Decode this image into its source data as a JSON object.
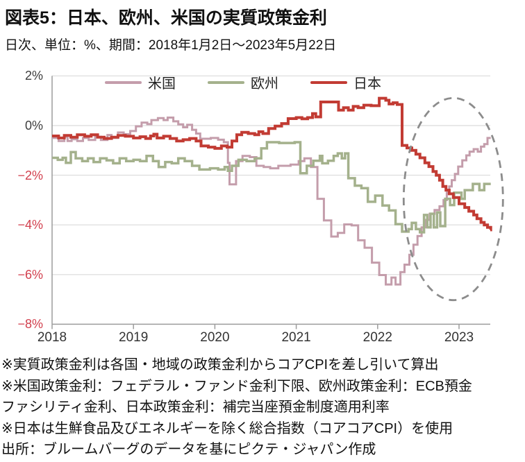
{
  "header": {
    "title": "図表5：日本、欧州、米国の実質政策金利",
    "subtitle": "日次、単位：%、期間：2018年1月2日～2023年5月22日"
  },
  "notes": [
    "※実質政策金利は各国・地域の政策金利からコアCPIを差し引いて算出",
    "※米国政策金利：フェデラル・ファンド金利下限、欧州政策金利：ECB預金ファシリティ金利、日本政策金利：補完当座預金制度適用利率",
    "※日本は生鮮食品及びエネルギーを除く総合指数（コアコアCPI）を使用",
    "出所：ブルームバーグのデータを基にピクテ・ジャパン作成"
  ],
  "colors": {
    "us": "#c49dab",
    "eu": "#a4b18c",
    "jp": "#c23b33",
    "grid": "#e0e0e0",
    "axis": "#9c9c9c",
    "negative_tick": "#d2404e",
    "positive_tick": "#3d3d3d",
    "ellipse": "#8c8c8c"
  },
  "chart_data": {
    "type": "line",
    "step": true,
    "title": "日本、欧州、米国の実質政策金利（%）",
    "x_range": [
      2018.0,
      2023.39
    ],
    "ylim": [
      -8,
      2
    ],
    "grid": "horizontal",
    "legend_position": "top-center",
    "x_ticks": [
      {
        "label": "2018",
        "year": 2018
      },
      {
        "label": "2019",
        "year": 2019
      },
      {
        "label": "2020",
        "year": 2020
      },
      {
        "label": "2021",
        "year": 2021
      },
      {
        "label": "2022",
        "year": 2022
      },
      {
        "label": "2023",
        "year": 2023
      }
    ],
    "y_ticks": [
      {
        "label": "2%",
        "value": 2,
        "tone": "positive"
      },
      {
        "label": "0%",
        "value": 0,
        "tone": "positive"
      },
      {
        "label": "−2%",
        "value": -2,
        "tone": "negative"
      },
      {
        "label": "−4%",
        "value": -4,
        "tone": "negative"
      },
      {
        "label": "−6%",
        "value": -6,
        "tone": "negative"
      },
      {
        "label": "−8%",
        "value": -8,
        "tone": "negative"
      }
    ],
    "annotation_ellipse": {
      "center_year": 2022.93,
      "center_value": -2.96,
      "rx_years": 0.61,
      "ry_values": 4.07,
      "style": "dashed-gray"
    },
    "series": [
      {
        "name": "米国",
        "color_key": "us",
        "width": 3,
        "points": [
          [
            2018.0,
            -0.5
          ],
          [
            2018.08,
            -0.62
          ],
          [
            2018.15,
            -0.45
          ],
          [
            2018.19,
            -0.62
          ],
          [
            2018.24,
            -0.55
          ],
          [
            2018.31,
            -0.62
          ],
          [
            2018.38,
            -0.5
          ],
          [
            2018.45,
            -0.58
          ],
          [
            2018.53,
            -0.45
          ],
          [
            2018.6,
            -0.58
          ],
          [
            2018.68,
            -0.38
          ],
          [
            2018.73,
            -0.5
          ],
          [
            2018.81,
            -0.28
          ],
          [
            2018.88,
            -0.35
          ],
          [
            2018.96,
            -0.22
          ],
          [
            2019.03,
            -0.03
          ],
          [
            2019.1,
            0.12
          ],
          [
            2019.17,
            0.06
          ],
          [
            2019.22,
            0.22
          ],
          [
            2019.3,
            0.3
          ],
          [
            2019.37,
            0.22
          ],
          [
            2019.42,
            0.32
          ],
          [
            2019.49,
            0.17
          ],
          [
            2019.55,
            0.05
          ],
          [
            2019.61,
            -0.07
          ],
          [
            2019.66,
            0.03
          ],
          [
            2019.72,
            -0.17
          ],
          [
            2019.77,
            -0.32
          ],
          [
            2019.82,
            -0.53
          ],
          [
            2019.95,
            -0.5
          ],
          [
            2020.04,
            -0.57
          ],
          [
            2020.11,
            -0.67
          ],
          [
            2020.16,
            -1.5
          ],
          [
            2020.18,
            -2.37
          ],
          [
            2020.26,
            -1.43
          ],
          [
            2020.34,
            -1.22
          ],
          [
            2020.43,
            -1.27
          ],
          [
            2020.51,
            -1.62
          ],
          [
            2020.6,
            -1.67
          ],
          [
            2020.68,
            -1.72
          ],
          [
            2020.78,
            -1.62
          ],
          [
            2020.93,
            -1.57
          ],
          [
            2021.03,
            -1.43
          ],
          [
            2021.1,
            -1.32
          ],
          [
            2021.18,
            -1.67
          ],
          [
            2021.26,
            -2.95
          ],
          [
            2021.34,
            -3.82
          ],
          [
            2021.43,
            -4.47
          ],
          [
            2021.51,
            -4.32
          ],
          [
            2021.59,
            -3.98
          ],
          [
            2021.68,
            -4.02
          ],
          [
            2021.76,
            -4.62
          ],
          [
            2021.84,
            -4.92
          ],
          [
            2021.93,
            -5.52
          ],
          [
            2022.02,
            -6.02
          ],
          [
            2022.1,
            -6.4
          ],
          [
            2022.17,
            -6.12
          ],
          [
            2022.22,
            -6.4
          ],
          [
            2022.28,
            -5.9
          ],
          [
            2022.33,
            -5.6
          ],
          [
            2022.39,
            -5.2
          ],
          [
            2022.44,
            -4.8
          ],
          [
            2022.49,
            -4.45
          ],
          [
            2022.54,
            -4.1
          ],
          [
            2022.59,
            -3.8
          ],
          [
            2022.64,
            -3.55
          ],
          [
            2022.7,
            -3.4
          ],
          [
            2022.76,
            -3.25
          ],
          [
            2022.81,
            -3.0
          ],
          [
            2022.85,
            -2.7
          ],
          [
            2022.88,
            -2.45
          ],
          [
            2022.91,
            -2.2
          ],
          [
            2022.95,
            -1.95
          ],
          [
            2022.99,
            -1.65
          ],
          [
            2023.04,
            -1.4
          ],
          [
            2023.09,
            -1.2
          ],
          [
            2023.13,
            -1.05
          ],
          [
            2023.18,
            -0.95
          ],
          [
            2023.23,
            -1.05
          ],
          [
            2023.27,
            -0.85
          ],
          [
            2023.31,
            -0.75
          ],
          [
            2023.35,
            -0.5
          ],
          [
            2023.39,
            -0.5
          ]
        ]
      },
      {
        "name": "欧州",
        "color_key": "eu",
        "width": 3.5,
        "points": [
          [
            2018.0,
            -1.3
          ],
          [
            2018.07,
            -1.38
          ],
          [
            2018.13,
            -1.3
          ],
          [
            2018.17,
            -1.5
          ],
          [
            2018.23,
            -1.07
          ],
          [
            2018.29,
            -1.32
          ],
          [
            2018.37,
            -1.43
          ],
          [
            2018.44,
            -1.32
          ],
          [
            2018.51,
            -1.47
          ],
          [
            2018.59,
            -1.32
          ],
          [
            2018.67,
            -1.4
          ],
          [
            2018.75,
            -1.52
          ],
          [
            2018.83,
            -1.32
          ],
          [
            2018.91,
            -1.43
          ],
          [
            2019.0,
            -1.38
          ],
          [
            2019.08,
            -1.43
          ],
          [
            2019.16,
            -1.22
          ],
          [
            2019.24,
            -1.43
          ],
          [
            2019.31,
            -1.67
          ],
          [
            2019.39,
            -1.47
          ],
          [
            2019.47,
            -1.52
          ],
          [
            2019.55,
            -1.32
          ],
          [
            2019.63,
            -1.43
          ],
          [
            2019.72,
            -1.62
          ],
          [
            2019.81,
            -1.77
          ],
          [
            2019.94,
            -1.72
          ],
          [
            2020.04,
            -1.77
          ],
          [
            2020.12,
            -1.67
          ],
          [
            2020.16,
            -1.82
          ],
          [
            2020.21,
            -1.62
          ],
          [
            2020.29,
            -1.38
          ],
          [
            2020.39,
            -1.43
          ],
          [
            2020.49,
            -1.32
          ],
          [
            2020.57,
            -0.92
          ],
          [
            2020.64,
            -0.67
          ],
          [
            2020.79,
            -0.7
          ],
          [
            2020.98,
            -0.67
          ],
          [
            2021.05,
            -1.92
          ],
          [
            2021.13,
            -1.62
          ],
          [
            2021.21,
            -1.42
          ],
          [
            2021.29,
            -1.22
          ],
          [
            2021.32,
            -1.52
          ],
          [
            2021.39,
            -1.42
          ],
          [
            2021.46,
            -1.22
          ],
          [
            2021.51,
            -1.12
          ],
          [
            2021.56,
            -1.32
          ],
          [
            2021.6,
            -1.12
          ],
          [
            2021.64,
            -2.12
          ],
          [
            2021.72,
            -2.42
          ],
          [
            2021.8,
            -2.52
          ],
          [
            2021.88,
            -3.07
          ],
          [
            2021.97,
            -2.82
          ],
          [
            2022.06,
            -3.22
          ],
          [
            2022.14,
            -3.42
          ],
          [
            2022.22,
            -3.97
          ],
          [
            2022.3,
            -4.27
          ],
          [
            2022.38,
            -4.17
          ],
          [
            2022.42,
            -3.92
          ],
          [
            2022.47,
            -4.17
          ],
          [
            2022.52,
            -4.3
          ],
          [
            2022.57,
            -3.6
          ],
          [
            2022.61,
            -4.1
          ],
          [
            2022.65,
            -3.55
          ],
          [
            2022.69,
            -4.1
          ],
          [
            2022.73,
            -3.5
          ],
          [
            2022.77,
            -4.05
          ],
          [
            2022.83,
            -2.95
          ],
          [
            2022.89,
            -3.2
          ],
          [
            2022.94,
            -2.7
          ],
          [
            2023.03,
            -2.95
          ],
          [
            2023.07,
            -2.6
          ],
          [
            2023.17,
            -2.35
          ],
          [
            2023.25,
            -2.6
          ],
          [
            2023.31,
            -2.35
          ],
          [
            2023.39,
            -2.35
          ]
        ]
      },
      {
        "name": "日本",
        "color_key": "jp",
        "width": 4,
        "points": [
          [
            2018.0,
            -0.42
          ],
          [
            2018.08,
            -0.5
          ],
          [
            2018.15,
            -0.4
          ],
          [
            2018.23,
            -0.47
          ],
          [
            2018.31,
            -0.37
          ],
          [
            2018.4,
            -0.43
          ],
          [
            2018.48,
            -0.37
          ],
          [
            2018.56,
            -0.47
          ],
          [
            2018.64,
            -0.52
          ],
          [
            2018.73,
            -0.47
          ],
          [
            2018.81,
            -0.4
          ],
          [
            2018.9,
            -0.43
          ],
          [
            2019.0,
            -0.5
          ],
          [
            2019.08,
            -0.45
          ],
          [
            2019.15,
            -0.52
          ],
          [
            2019.21,
            -0.42
          ],
          [
            2019.25,
            -0.35
          ],
          [
            2019.29,
            -0.5
          ],
          [
            2019.37,
            -0.43
          ],
          [
            2019.45,
            -0.52
          ],
          [
            2019.53,
            -0.62
          ],
          [
            2019.61,
            -0.57
          ],
          [
            2019.69,
            -0.52
          ],
          [
            2019.77,
            -0.62
          ],
          [
            2019.83,
            -0.82
          ],
          [
            2019.92,
            -0.87
          ],
          [
            2020.0,
            -0.92
          ],
          [
            2020.08,
            -0.82
          ],
          [
            2020.15,
            -0.87
          ],
          [
            2020.21,
            -0.62
          ],
          [
            2020.27,
            -0.37
          ],
          [
            2020.33,
            -0.27
          ],
          [
            2020.41,
            -0.32
          ],
          [
            2020.49,
            -0.37
          ],
          [
            2020.54,
            -0.25
          ],
          [
            2020.59,
            -0.32
          ],
          [
            2020.66,
            -0.12
          ],
          [
            2020.74,
            -0.02
          ],
          [
            2020.82,
            0.08
          ],
          [
            2020.9,
            0.28
          ],
          [
            2021.0,
            0.32
          ],
          [
            2021.07,
            0.27
          ],
          [
            2021.14,
            0.32
          ],
          [
            2021.2,
            0.48
          ],
          [
            2021.24,
            0.35
          ],
          [
            2021.3,
            0.95
          ],
          [
            2021.44,
            0.95
          ],
          [
            2021.52,
            0.62
          ],
          [
            2021.58,
            0.72
          ],
          [
            2021.64,
            0.62
          ],
          [
            2021.7,
            0.77
          ],
          [
            2021.76,
            0.72
          ],
          [
            2021.83,
            0.82
          ],
          [
            2021.92,
            0.8
          ],
          [
            2022.02,
            1.1
          ],
          [
            2022.1,
            1.02
          ],
          [
            2022.14,
            0.87
          ],
          [
            2022.19,
            0.92
          ],
          [
            2022.24,
            0.85
          ],
          [
            2022.3,
            -0.8
          ],
          [
            2022.36,
            -0.9
          ],
          [
            2022.42,
            -1.0
          ],
          [
            2022.47,
            -1.15
          ],
          [
            2022.52,
            -1.3
          ],
          [
            2022.58,
            -1.5
          ],
          [
            2022.63,
            -1.65
          ],
          [
            2022.68,
            -1.85
          ],
          [
            2022.72,
            -2.0
          ],
          [
            2022.76,
            -2.2
          ],
          [
            2022.8,
            -2.45
          ],
          [
            2022.84,
            -2.6
          ],
          [
            2022.88,
            -2.75
          ],
          [
            2022.93,
            -2.9
          ],
          [
            2023.0,
            -3.15
          ],
          [
            2023.07,
            -3.3
          ],
          [
            2023.12,
            -3.45
          ],
          [
            2023.18,
            -3.6
          ],
          [
            2023.22,
            -3.75
          ],
          [
            2023.27,
            -3.9
          ],
          [
            2023.31,
            -4.0
          ],
          [
            2023.35,
            -4.1
          ],
          [
            2023.39,
            -4.2
          ]
        ]
      }
    ]
  }
}
